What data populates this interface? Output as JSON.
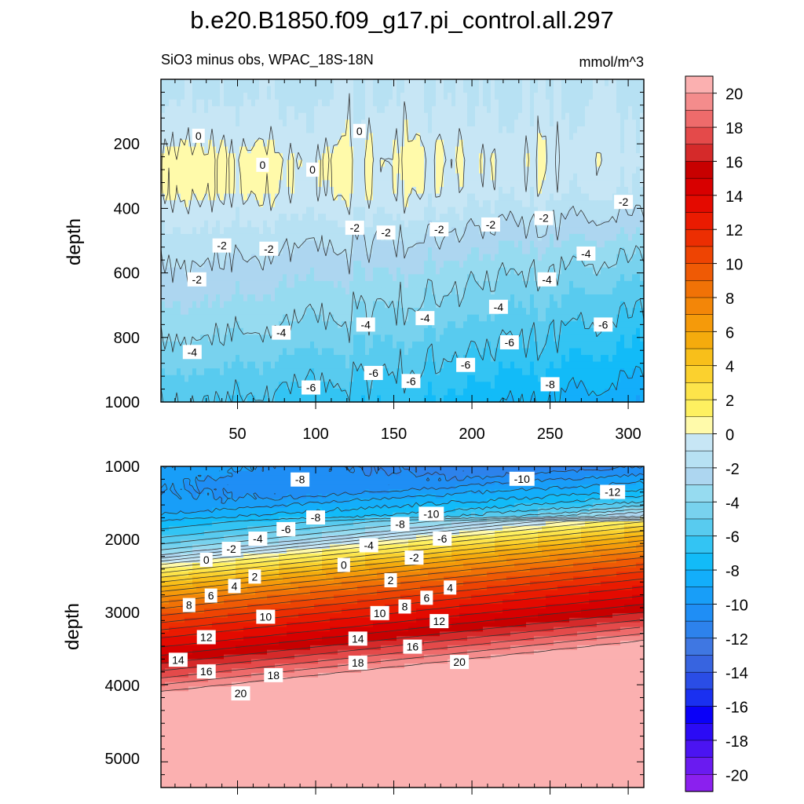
{
  "chart_data": {
    "type": "contour",
    "title": "b.e20.B1850.f09_g17.pi_control.all.297",
    "left_subtitle": "SiO3 minus obs, WPAC_18S-18N",
    "right_subtitle": "mmol/m^3",
    "colorbar": {
      "min": -21,
      "max": 21,
      "step": 1,
      "tick_labels": [
        "20",
        "18",
        "16",
        "14",
        "12",
        "10",
        "8",
        "6",
        "4",
        "2",
        "0",
        "-2",
        "-4",
        "-6",
        "-8",
        "-10",
        "-12",
        "-14",
        "-16",
        "-18",
        "-20"
      ],
      "tick_values": [
        20,
        18,
        16,
        14,
        12,
        10,
        8,
        6,
        4,
        2,
        0,
        -2,
        -4,
        -6,
        -8,
        -10,
        -12,
        -14,
        -16,
        -18,
        -20
      ]
    },
    "panels": [
      {
        "name": "upper",
        "ylabel": "depth",
        "ylim": [
          1000,
          0
        ],
        "xlim": [
          1,
          310
        ],
        "y_tick_values": [
          200,
          400,
          600,
          800,
          1000
        ],
        "y_tick_labels": [
          "200",
          "400",
          "600",
          "800",
          "1000"
        ],
        "x_tick_values": [
          50,
          100,
          150,
          200,
          250,
          300
        ],
        "x_tick_labels": [
          "50",
          "100",
          "150",
          "200",
          "250",
          "300"
        ],
        "profile_depths": [
          50,
          150,
          250,
          350,
          450,
          550,
          650,
          750,
          850,
          950,
          1000
        ],
        "profile_west": [
          -1.2,
          -0.6,
          0.3,
          0.2,
          -0.9,
          -1.8,
          -2.6,
          -3.4,
          -4.4,
          -5.4,
          -5.9
        ],
        "profile_east": [
          -1.2,
          -0.8,
          -0.5,
          -1.1,
          -2.6,
          -4.1,
          -5.4,
          -6.4,
          -7.4,
          -8.4,
          -8.9
        ],
        "contour_labels": [
          {
            "x": 25,
            "y": 175,
            "text": "0"
          },
          {
            "x": 128,
            "y": 160,
            "text": "0"
          },
          {
            "x": 66,
            "y": 265,
            "text": "0"
          },
          {
            "x": 98,
            "y": 280,
            "text": "0"
          },
          {
            "x": 40,
            "y": 515,
            "text": "-2"
          },
          {
            "x": 70,
            "y": 525,
            "text": "-2"
          },
          {
            "x": 125,
            "y": 460,
            "text": "-2"
          },
          {
            "x": 145,
            "y": 475,
            "text": "-2"
          },
          {
            "x": 179,
            "y": 465,
            "text": "-2"
          },
          {
            "x": 212,
            "y": 450,
            "text": "-2"
          },
          {
            "x": 246,
            "y": 430,
            "text": "-2"
          },
          {
            "x": 297,
            "y": 380,
            "text": "-2"
          },
          {
            "x": 24,
            "y": 620,
            "text": "-2"
          },
          {
            "x": 273,
            "y": 540,
            "text": "-4"
          },
          {
            "x": 248,
            "y": 620,
            "text": "-4"
          },
          {
            "x": 217,
            "y": 705,
            "text": "-4"
          },
          {
            "x": 170,
            "y": 740,
            "text": "-4"
          },
          {
            "x": 132,
            "y": 760,
            "text": "-4"
          },
          {
            "x": 78,
            "y": 785,
            "text": "-4"
          },
          {
            "x": 21,
            "y": 845,
            "text": "-4"
          },
          {
            "x": 284,
            "y": 760,
            "text": "-6"
          },
          {
            "x": 224,
            "y": 815,
            "text": "-6"
          },
          {
            "x": 196,
            "y": 885,
            "text": "-6"
          },
          {
            "x": 137,
            "y": 910,
            "text": "-6"
          },
          {
            "x": 161,
            "y": 935,
            "text": "-6"
          },
          {
            "x": 97,
            "y": 955,
            "text": "-6"
          },
          {
            "x": 250,
            "y": 945,
            "text": "-8"
          }
        ]
      },
      {
        "name": "lower",
        "ylabel": "depth",
        "ylim": [
          5400,
          1000
        ],
        "xlim": [
          1,
          310
        ],
        "y_tick_values": [
          1000,
          2000,
          3000,
          4000,
          5000
        ],
        "y_tick_labels": [
          "1000",
          "2000",
          "3000",
          "4000",
          "5000"
        ],
        "base_profile_depths": [
          1000,
          1300,
          1600,
          1800,
          2000,
          2200,
          2350,
          2500,
          2700,
          2900,
          3100,
          3300,
          3500,
          3700,
          3900,
          4100,
          4400,
          5400
        ],
        "base_profile_values": [
          -9,
          -10,
          -9.5,
          -7.5,
          -5.8,
          -3.3,
          0.2,
          2.7,
          5.8,
          8.5,
          10.6,
          12.6,
          14.2,
          16.0,
          18.0,
          20.2,
          21.5,
          21.5
        ],
        "east_shallowing_depth": 700,
        "contour_labels": [
          {
            "x": 90,
            "y": 1180,
            "text": "-8"
          },
          {
            "x": 232,
            "y": 1170,
            "text": "-10"
          },
          {
            "x": 290,
            "y": 1350,
            "text": "-12"
          },
          {
            "x": 100,
            "y": 1700,
            "text": "-8"
          },
          {
            "x": 154,
            "y": 1790,
            "text": "-8"
          },
          {
            "x": 174,
            "y": 1650,
            "text": "-10"
          },
          {
            "x": 81,
            "y": 1860,
            "text": "-6"
          },
          {
            "x": 181,
            "y": 1990,
            "text": "-6"
          },
          {
            "x": 63,
            "y": 1990,
            "text": "-4"
          },
          {
            "x": 134,
            "y": 2080,
            "text": "-4"
          },
          {
            "x": 46,
            "y": 2130,
            "text": "-2"
          },
          {
            "x": 163,
            "y": 2250,
            "text": "-2"
          },
          {
            "x": 30,
            "y": 2280,
            "text": "0"
          },
          {
            "x": 118,
            "y": 2350,
            "text": "0"
          },
          {
            "x": 61,
            "y": 2510,
            "text": "2"
          },
          {
            "x": 148,
            "y": 2560,
            "text": "2"
          },
          {
            "x": 48,
            "y": 2640,
            "text": "4"
          },
          {
            "x": 186,
            "y": 2660,
            "text": "4"
          },
          {
            "x": 33,
            "y": 2770,
            "text": "6"
          },
          {
            "x": 171,
            "y": 2800,
            "text": "6"
          },
          {
            "x": 19,
            "y": 2900,
            "text": "8"
          },
          {
            "x": 157,
            "y": 2920,
            "text": "8"
          },
          {
            "x": 68,
            "y": 3060,
            "text": "10"
          },
          {
            "x": 141,
            "y": 3010,
            "text": "10"
          },
          {
            "x": 179,
            "y": 3120,
            "text": "12"
          },
          {
            "x": 30,
            "y": 3340,
            "text": "12"
          },
          {
            "x": 127,
            "y": 3360,
            "text": "14"
          },
          {
            "x": 12,
            "y": 3650,
            "text": "14"
          },
          {
            "x": 162,
            "y": 3470,
            "text": "16"
          },
          {
            "x": 30,
            "y": 3810,
            "text": "16"
          },
          {
            "x": 127,
            "y": 3690,
            "text": "18"
          },
          {
            "x": 73,
            "y": 3860,
            "text": "18"
          },
          {
            "x": 192,
            "y": 3680,
            "text": "20"
          },
          {
            "x": 52,
            "y": 4110,
            "text": "20"
          }
        ]
      }
    ]
  }
}
